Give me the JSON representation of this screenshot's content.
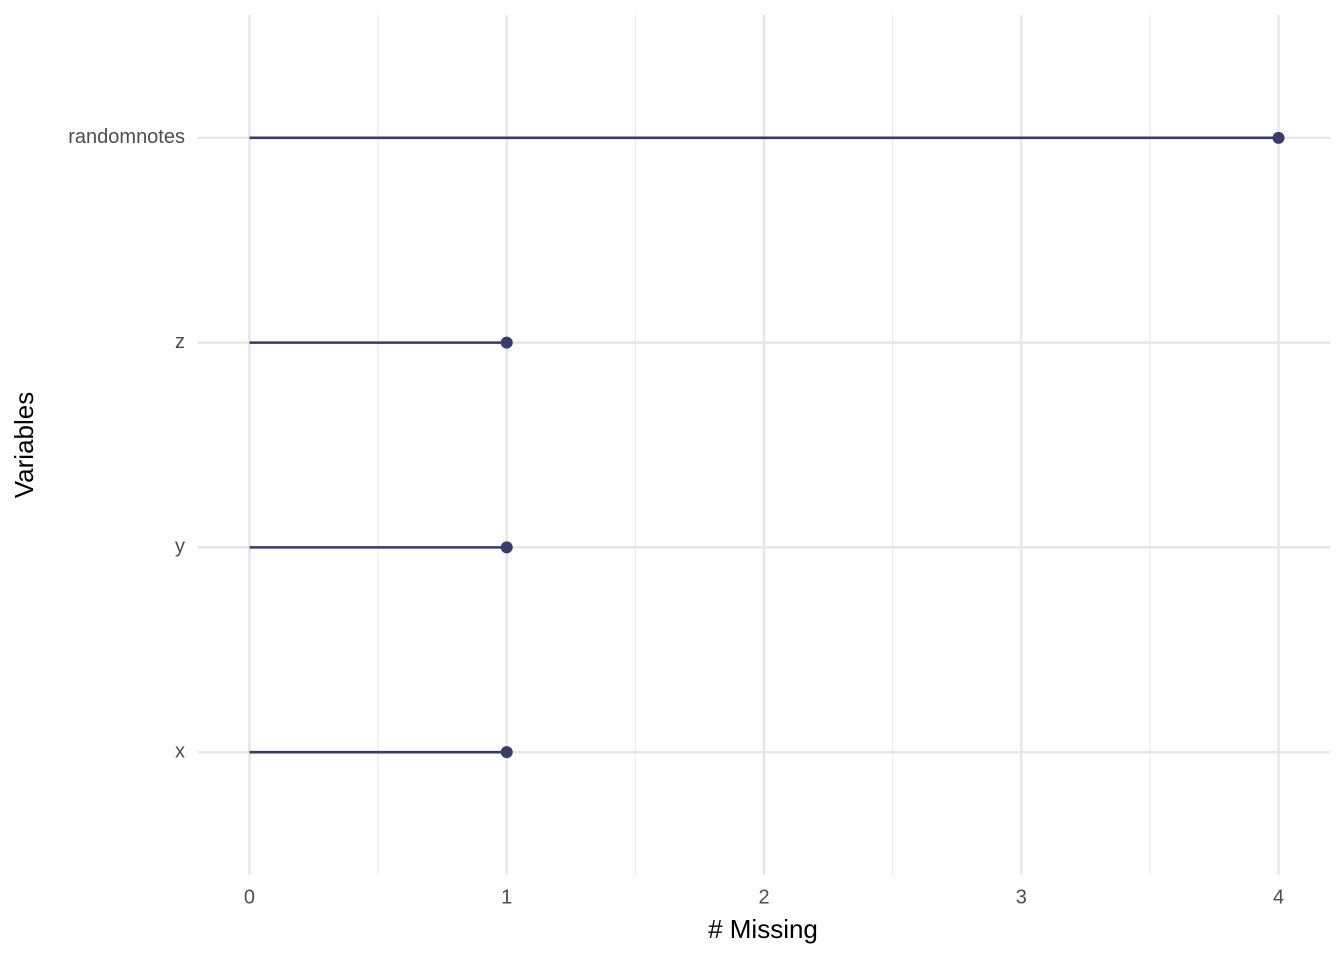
{
  "chart_data": {
    "type": "lollipop",
    "orientation": "horizontal",
    "x_label": "# Missing",
    "y_label": "Variables",
    "categories": [
      "randomnotes",
      "z",
      "y",
      "x"
    ],
    "values": [
      4,
      1,
      1,
      1
    ],
    "color": "#393b6b",
    "xlim": [
      -0.2,
      4.2
    ],
    "xticks": [
      0,
      1,
      2,
      3,
      4
    ],
    "x_minor_grid": [
      0.5,
      1.5,
      2.5,
      3.5
    ],
    "grid": true
  }
}
